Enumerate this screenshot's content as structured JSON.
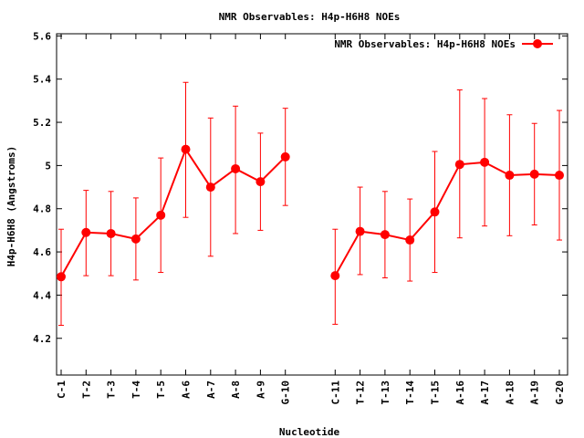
{
  "chart_data": {
    "type": "line",
    "title": "NMR Observables: H4p-H6H8 NOEs",
    "xlabel": "Nucleotide",
    "ylabel": "H4p-H6H8 (Angstroms)",
    "ylim": [
      4.03,
      5.61
    ],
    "y_ticks": [
      "4.2",
      "4.4",
      "4.6",
      "4.8",
      "5",
      "5.2",
      "5.4",
      "5.6"
    ],
    "grid": false,
    "legend_position": "top-right",
    "categories": [
      "C-1",
      "T-2",
      "T-3",
      "T-4",
      "T-5",
      "A-6",
      "A-7",
      "A-8",
      "A-9",
      "G-10",
      "C-11",
      "T-12",
      "T-13",
      "T-14",
      "T-15",
      "A-16",
      "A-17",
      "A-18",
      "A-19",
      "G-20"
    ],
    "series": [
      {
        "name": "NMR Observables: H4p-H6H8 NOEs",
        "color": "#ff0000",
        "values": [
          4.485,
          4.69,
          4.685,
          4.66,
          4.77,
          5.075,
          4.9,
          4.985,
          4.925,
          5.04,
          4.49,
          4.695,
          4.68,
          4.655,
          4.785,
          5.005,
          5.015,
          4.955,
          4.96,
          4.955
        ],
        "err_low": [
          4.26,
          4.49,
          4.49,
          4.47,
          4.505,
          4.76,
          4.58,
          4.685,
          4.7,
          4.815,
          4.265,
          4.495,
          4.48,
          4.465,
          4.505,
          4.665,
          4.72,
          4.675,
          4.725,
          4.655
        ],
        "err_high": [
          4.705,
          4.885,
          4.88,
          4.85,
          5.035,
          5.385,
          5.22,
          5.275,
          5.15,
          5.265,
          4.705,
          4.9,
          4.88,
          4.845,
          5.065,
          5.35,
          5.31,
          5.235,
          5.195,
          5.255
        ]
      }
    ]
  }
}
